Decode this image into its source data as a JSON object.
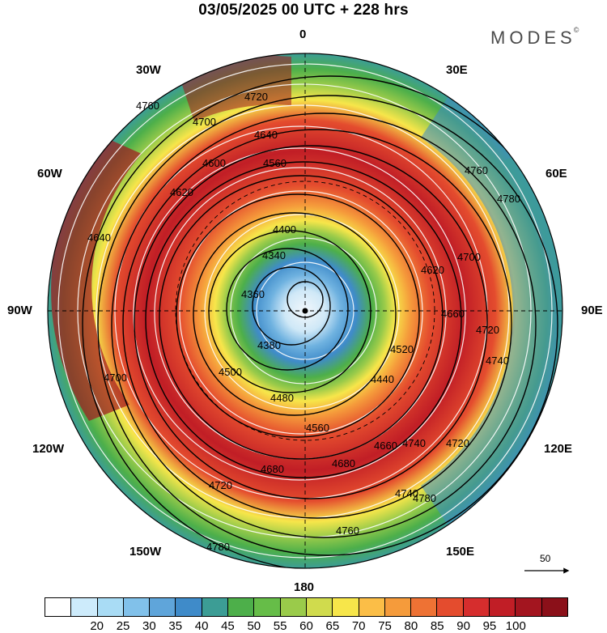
{
  "header": {
    "title": "03/05/2025  00 UTC  + 228 hrs"
  },
  "brand": {
    "name": "MODES",
    "mark": "©"
  },
  "longitudes": {
    "top": "0",
    "bottom": "180",
    "left": "90W",
    "right": "90E",
    "nw_upper": "30W",
    "nw_lower": "60W",
    "ne_upper": "30E",
    "ne_lower": "60E",
    "sw_upper": "120W",
    "sw_lower": "150W",
    "se_upper": "120E",
    "se_lower": "150E"
  },
  "vector_scale": {
    "label": "50"
  },
  "contour_labels": [
    "4760",
    "4720",
    "4700",
    "4640",
    "4600",
    "4560",
    "4480",
    "4400",
    "4340",
    "4360",
    "4380",
    "4440",
    "4500",
    "4520",
    "4620",
    "4660",
    "4680",
    "4740",
    "4780",
    "4700",
    "4720",
    "4680",
    "4560",
    "4660",
    "4720",
    "4740",
    "4760",
    "4780",
    "4620",
    "4700",
    "4640",
    "4720",
    "4760",
    "4740",
    "4780"
  ],
  "colorbar": {
    "colors": [
      "#ffffff",
      "#cdebfb",
      "#a9dcf5",
      "#81c1ea",
      "#5fa5da",
      "#3f8bc9",
      "#3c9d95",
      "#4daf4a",
      "#66bd48",
      "#9acb4a",
      "#d0db4d",
      "#f7e64a",
      "#fbbe47",
      "#f59b3b",
      "#ee7234",
      "#e44c2e",
      "#d62d2d",
      "#c11e26",
      "#a3151f",
      "#8b1019"
    ],
    "ticks": [
      "20",
      "25",
      "30",
      "35",
      "40",
      "45",
      "50",
      "55",
      "60",
      "65",
      "70",
      "75",
      "80",
      "85",
      "90",
      "95",
      "100"
    ]
  }
}
